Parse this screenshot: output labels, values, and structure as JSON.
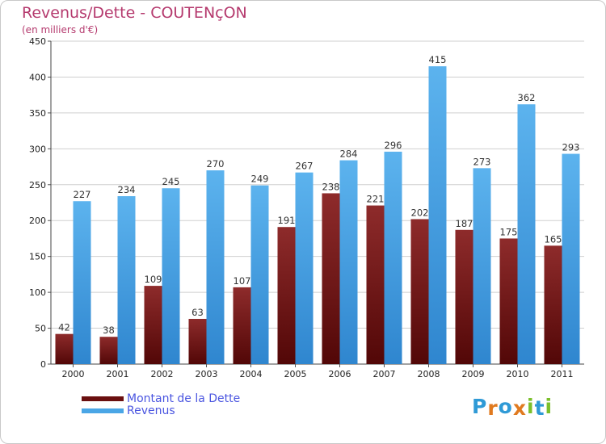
{
  "title": "Revenus/Dette - COUTENçON",
  "subtitle": "(en milliers d'€)",
  "colors": {
    "title": "#b53a6e",
    "dette": "#7a1c1c",
    "revenus": "#4aa6e6",
    "legend_text": "#4a55e0",
    "grid": "#cfcfcf",
    "background": "#ffffff"
  },
  "chart_data": {
    "type": "bar",
    "title": "Revenus/Dette - COUTENçON",
    "ylabel": "(en milliers d'€)",
    "categories": [
      "2000",
      "2001",
      "2002",
      "2003",
      "2004",
      "2005",
      "2006",
      "2007",
      "2008",
      "2009",
      "2010",
      "2011"
    ],
    "series": [
      {
        "name": "Montant de la Dette",
        "values": [
          42,
          38,
          109,
          63,
          107,
          191,
          238,
          221,
          202,
          187,
          175,
          165
        ]
      },
      {
        "name": "Revenus",
        "values": [
          227,
          234,
          245,
          270,
          249,
          267,
          284,
          296,
          415,
          273,
          362,
          293
        ]
      }
    ],
    "ylim": [
      0,
      450
    ],
    "yticks": [
      0,
      50,
      100,
      150,
      200,
      250,
      300,
      350,
      400,
      450
    ],
    "grid": true,
    "legend": "bottom-left"
  },
  "legend": {
    "items": [
      {
        "label": "Montant de la Dette",
        "color": "#6a0f0f"
      },
      {
        "label": "Revenus",
        "color": "#4aa6e6"
      }
    ]
  },
  "logo": {
    "letters": [
      "P",
      "r",
      "o",
      "x",
      "i",
      "t",
      "i"
    ],
    "colors": [
      "#2f9ad6",
      "#e07a1f",
      "#2f9ad6",
      "#e07a1f",
      "#7bbf2a",
      "#2f9ad6",
      "#7bbf2a"
    ]
  }
}
